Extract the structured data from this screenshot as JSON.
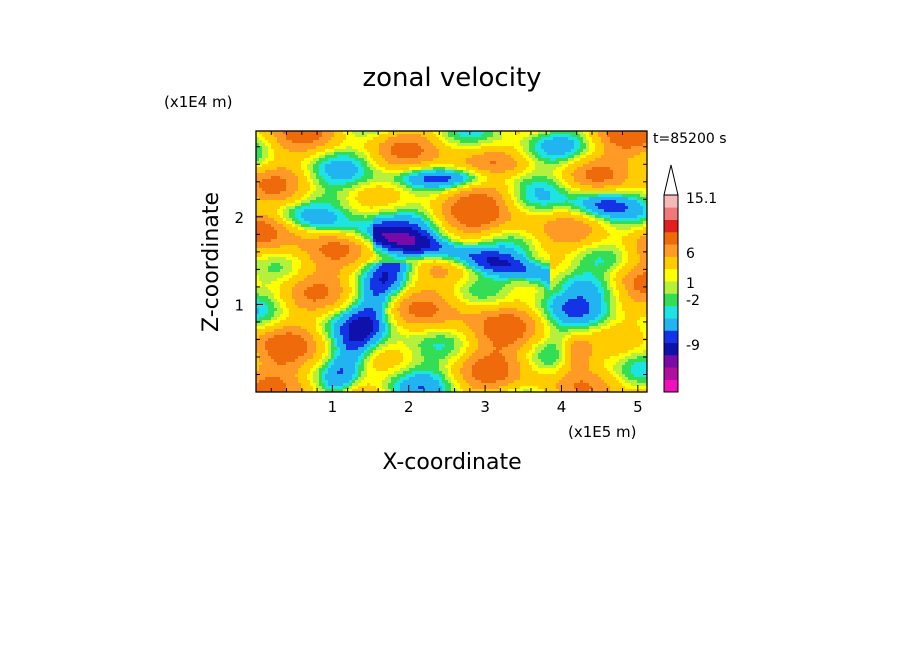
{
  "chart_data": {
    "type": "heatmap",
    "title": "zonal velocity",
    "xlabel": "X-coordinate",
    "ylabel": "Z-coordinate",
    "x_unit": "(x1E5 m)",
    "y_unit": "(x1E4 m)",
    "time_label": "t=85200 s",
    "xlim": [
      0,
      5.12
    ],
    "ylim": [
      0,
      2.98
    ],
    "x_ticks": [
      1,
      2,
      3,
      4,
      5
    ],
    "y_ticks": [
      1,
      2
    ],
    "x_tick_labels": [
      "1",
      "2",
      "3",
      "4",
      "5"
    ],
    "y_tick_labels": [
      "1",
      "2"
    ],
    "colorbar": {
      "labeled_levels": [
        "15.1",
        "6",
        "1",
        "-2",
        "-9"
      ],
      "levels": [
        -16,
        -12,
        -9,
        -6,
        -4,
        -2,
        -1,
        0,
        1,
        2,
        4,
        6,
        9,
        12,
        15.1
      ],
      "colors": [
        "#ee11bb",
        "#b0109e",
        "#7a0aa8",
        "#1010aa",
        "#1433e6",
        "#21b4f0",
        "#1ee3e3",
        "#33dd55",
        "#b4f03c",
        "#ffff00",
        "#ffcc00",
        "#ff9a26",
        "#ee6a0a",
        "#e02020",
        "#f07878",
        "#f7b8b8"
      ],
      "extend_max": true
    },
    "field_description": "2D zonal velocity contour field; dominant slightly positive values (yellow/orange) with negative bands (cyan/blue) and localized strong negative cores",
    "grid": false
  }
}
